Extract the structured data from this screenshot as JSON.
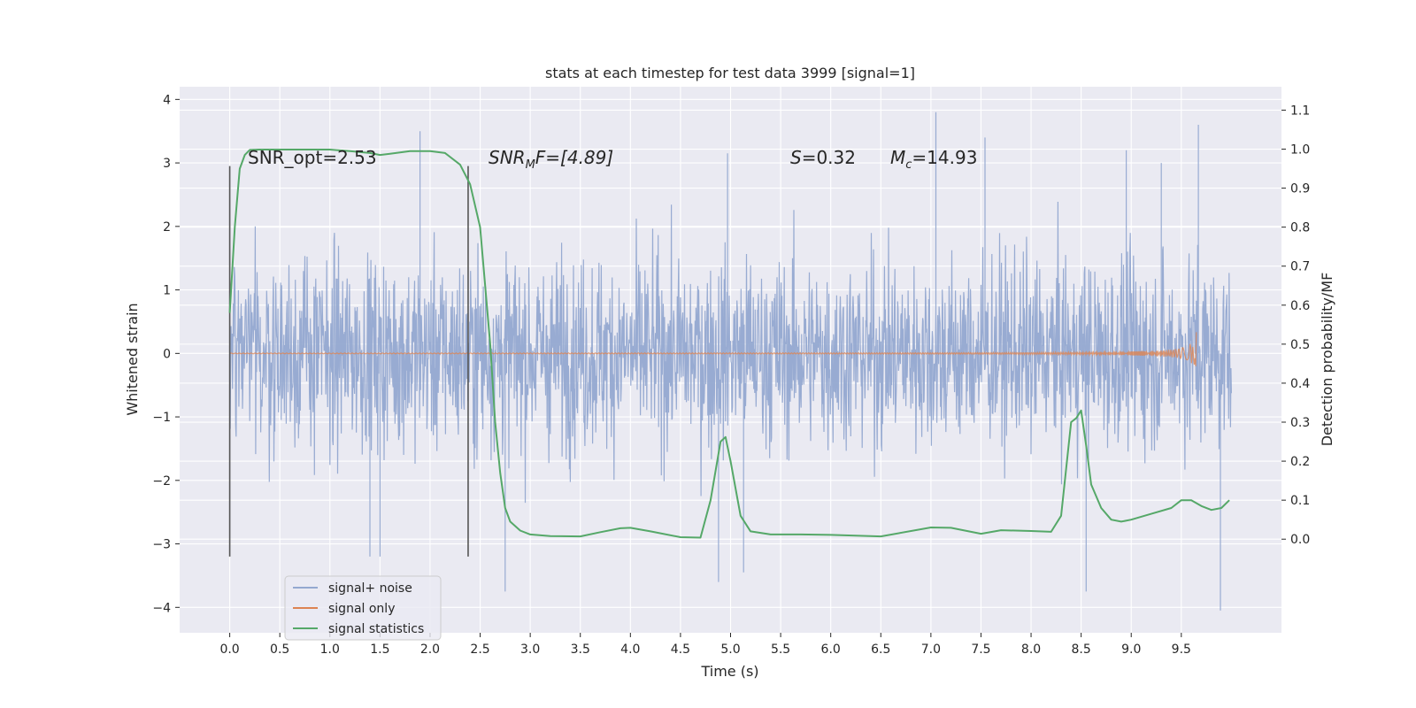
{
  "chart_data": {
    "type": "line",
    "title": "stats at each timestep for test data 3999 [signal=1]",
    "xlabel": "Time (s)",
    "ylabel": "Whitened strain",
    "ylabel_right": "Detection probability/MF",
    "xlim": [
      -0.5,
      10.5
    ],
    "ylim": [
      -4.4,
      4.2
    ],
    "ylim_right": [
      -0.24,
      1.16
    ],
    "x_ticks": [
      0.0,
      0.5,
      1.0,
      1.5,
      2.0,
      2.5,
      3.0,
      3.5,
      4.0,
      4.5,
      5.0,
      5.5,
      6.0,
      6.5,
      7.0,
      7.5,
      8.0,
      8.5,
      9.0,
      9.5
    ],
    "x_tick_labels": [
      "0.0",
      "0.5",
      "1.0",
      "1.5",
      "2.0",
      "2.5",
      "3.0",
      "3.5",
      "4.0",
      "4.5",
      "5.0",
      "5.5",
      "6.0",
      "6.5",
      "7.0",
      "7.5",
      "8.0",
      "8.5",
      "9.0",
      "9.5"
    ],
    "y_ticks": [
      -4,
      -3,
      -2,
      -1,
      0,
      1,
      2,
      3,
      4
    ],
    "y_tick_labels": [
      "−4",
      "−3",
      "−2",
      "−1",
      "0",
      "1",
      "2",
      "3",
      "4"
    ],
    "y2_ticks": [
      0.0,
      0.1,
      0.2,
      0.3,
      0.4,
      0.5,
      0.6,
      0.7,
      0.8,
      0.9,
      1.0,
      1.1
    ],
    "y2_tick_labels": [
      "0.0",
      "0.1",
      "0.2",
      "0.3",
      "0.4",
      "0.5",
      "0.6",
      "0.7",
      "0.8",
      "0.9",
      "1.0",
      "1.1"
    ],
    "grid": true,
    "legend": {
      "placement": "lower-left",
      "entries": [
        "signal+ noise",
        "signal only",
        "signal statistics"
      ]
    },
    "colors": {
      "noise": "#94a8d0",
      "signal": "#dd8452",
      "stats": "#55a868",
      "vline": "#555555",
      "background": "#eaeaf2",
      "grid": "#ffffff"
    },
    "annotations": {
      "snr_opt": "SNR_opt=2.53",
      "snr_mf_var": "SNR",
      "snr_mf_sub": "M",
      "snr_mf_tail": "F=[4.89]",
      "s_var": "S",
      "s_val": "=0.32",
      "mc_var": "M",
      "mc_sub": "c",
      "mc_val": "=14.93"
    },
    "vertical_lines": [
      {
        "x": 0.0,
        "ymin": -3.2,
        "ymax": 2.95
      },
      {
        "x": 2.38,
        "ymin": -3.2,
        "ymax": 2.95
      }
    ],
    "series": [
      {
        "name": "signal+ noise",
        "type": "noise",
        "x_range": [
          0.0,
          10.0
        ],
        "envelope_y": [
          -3.2,
          3.5
        ],
        "spikes": [
          [
            1.9,
            3.5
          ],
          [
            7.05,
            3.8
          ],
          [
            9.3,
            3.0
          ],
          [
            9.67,
            3.6
          ],
          [
            2.75,
            -3.75
          ],
          [
            4.88,
            -3.6
          ],
          [
            5.13,
            -3.45
          ],
          [
            8.55,
            -3.75
          ],
          [
            9.89,
            -4.05
          ],
          [
            1.4,
            -3.2
          ],
          [
            1.5,
            -3.2
          ],
          [
            4.97,
            3.15
          ],
          [
            7.54,
            3.4
          ],
          [
            8.95,
            3.2
          ]
        ]
      },
      {
        "name": "signal only",
        "type": "chirp",
        "x_range": [
          0.0,
          9.65
        ],
        "peak_amplitude": 0.35
      },
      {
        "name": "signal statistics",
        "axis": "right",
        "x": [
          0.0,
          0.05,
          0.1,
          0.15,
          0.2,
          0.3,
          0.5,
          0.8,
          1.0,
          1.2,
          1.4,
          1.5,
          1.6,
          1.8,
          2.0,
          2.15,
          2.3,
          2.4,
          2.5,
          2.6,
          2.65,
          2.7,
          2.75,
          2.8,
          2.9,
          3.0,
          3.2,
          3.5,
          3.7,
          3.9,
          4.0,
          4.2,
          4.5,
          4.7,
          4.8,
          4.9,
          4.95,
          5.0,
          5.1,
          5.2,
          5.4,
          5.7,
          6.0,
          6.5,
          7.0,
          7.2,
          7.5,
          7.7,
          8.0,
          8.2,
          8.3,
          8.4,
          8.45,
          8.5,
          8.55,
          8.6,
          8.7,
          8.8,
          8.9,
          9.0,
          9.2,
          9.4,
          9.5,
          9.6,
          9.7,
          9.8,
          9.9,
          9.98
        ],
        "y": [
          0.58,
          0.8,
          0.95,
          0.985,
          0.998,
          0.999,
          0.999,
          0.999,
          0.999,
          0.995,
          0.99,
          0.985,
          0.988,
          0.995,
          0.995,
          0.99,
          0.96,
          0.91,
          0.8,
          0.5,
          0.3,
          0.17,
          0.08,
          0.045,
          0.022,
          0.012,
          0.008,
          0.007,
          0.018,
          0.028,
          0.029,
          0.02,
          0.005,
          0.004,
          0.1,
          0.25,
          0.262,
          0.2,
          0.06,
          0.02,
          0.012,
          0.012,
          0.011,
          0.007,
          0.03,
          0.029,
          0.014,
          0.023,
          0.021,
          0.019,
          0.06,
          0.3,
          0.31,
          0.33,
          0.24,
          0.14,
          0.08,
          0.05,
          0.045,
          0.05,
          0.065,
          0.08,
          0.1,
          0.1,
          0.085,
          0.075,
          0.08,
          0.1
        ]
      }
    ]
  }
}
